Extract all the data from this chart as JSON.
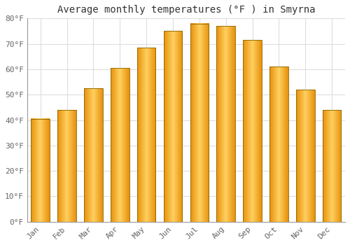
{
  "title": "Average monthly temperatures (°F ) in Smyrna",
  "months": [
    "Jan",
    "Feb",
    "Mar",
    "Apr",
    "May",
    "Jun",
    "Jul",
    "Aug",
    "Sep",
    "Oct",
    "Nov",
    "Dec"
  ],
  "values": [
    40.5,
    44.0,
    52.5,
    60.5,
    68.5,
    75.0,
    78.0,
    77.0,
    71.5,
    61.0,
    52.0,
    44.0
  ],
  "bar_color_dark": "#E8900A",
  "bar_color_mid": "#F5A623",
  "bar_color_light": "#FFD060",
  "bar_edge_color": "#886600",
  "ylim": [
    0,
    80
  ],
  "ytick_step": 10,
  "background_color": "#ffffff",
  "plot_bg_color": "#ffffff",
  "grid_color": "#dddddd",
  "title_fontsize": 10,
  "tick_fontsize": 8,
  "title_color": "#333333",
  "tick_color": "#666666",
  "bar_width": 0.7
}
